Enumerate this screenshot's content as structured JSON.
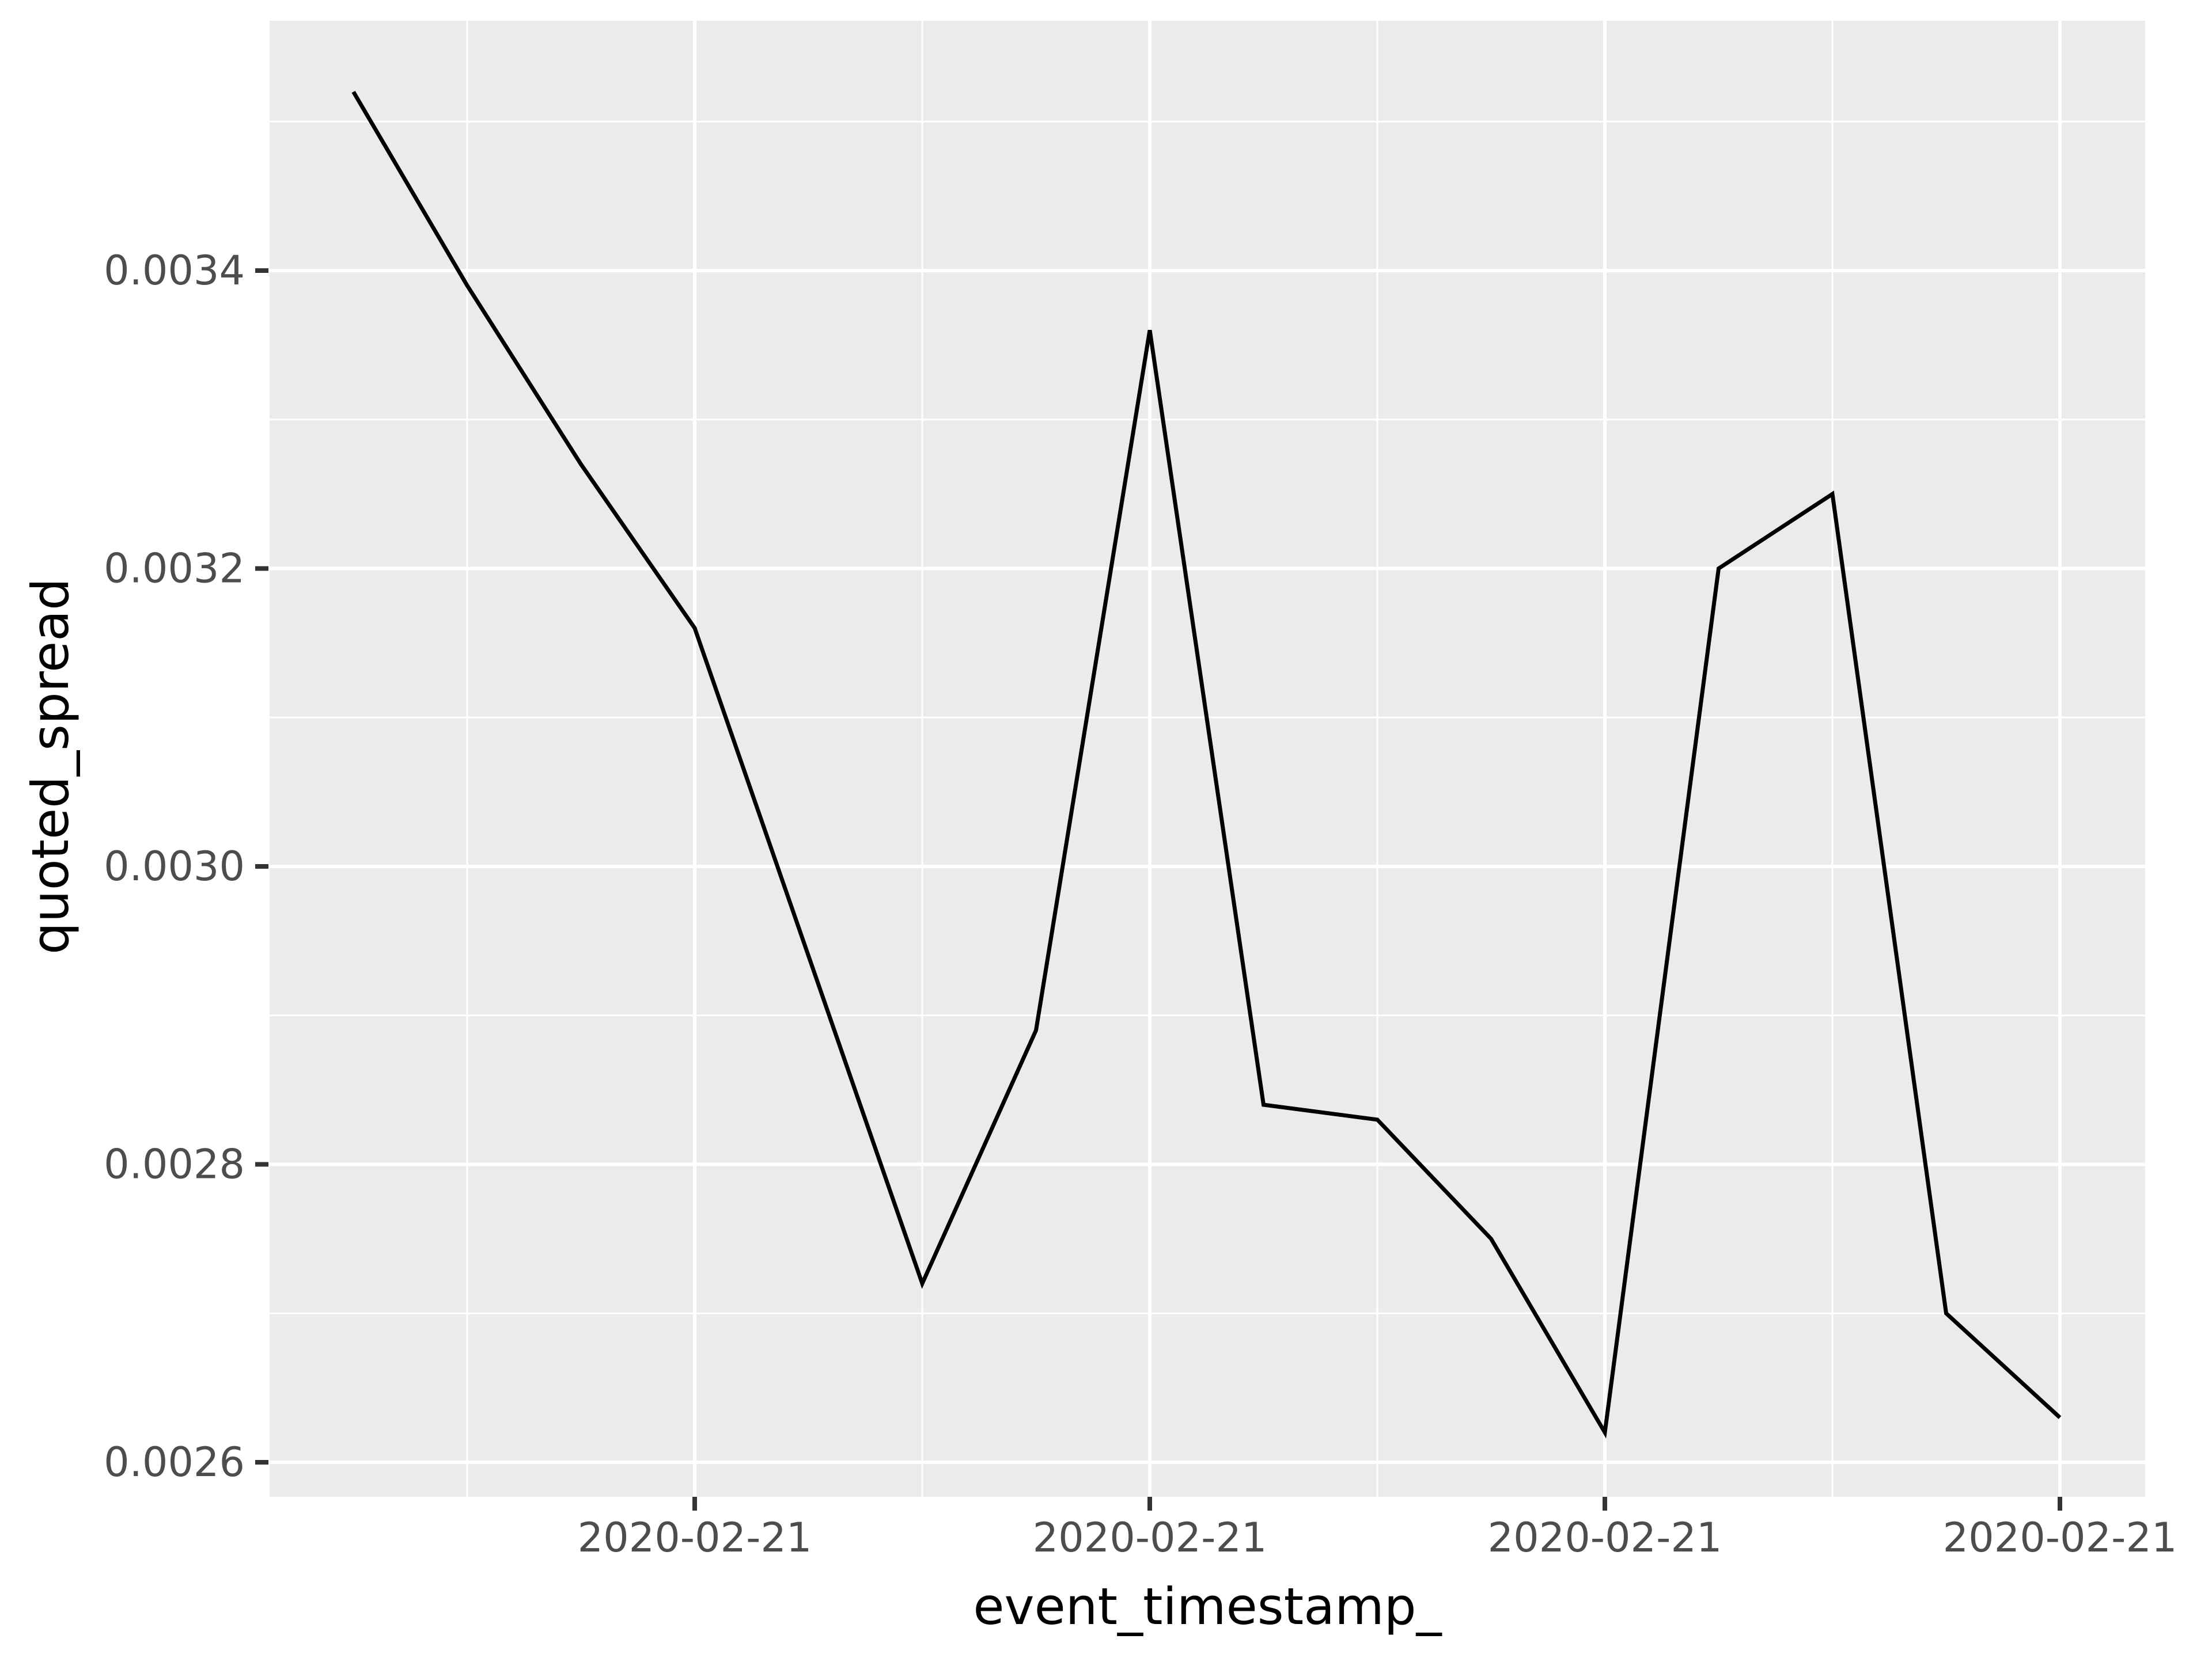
{
  "chart_data": {
    "type": "line",
    "title": "",
    "xlabel": "event_timestamp_",
    "ylabel": "quoted_spread",
    "x_tick_labels": [
      "2020-02-21",
      "2020-02-21",
      "2020-02-21",
      "2020-02-21"
    ],
    "y_tick_labels": [
      "0.0034",
      "0.0032",
      "0.0030",
      "0.0028",
      "0.0026"
    ],
    "y_major_gridlines": [
      0.0034,
      0.0032,
      0.003,
      0.0028,
      0.0026
    ],
    "y_minor_gridlines": [
      0.0035,
      0.0033,
      0.0031,
      0.0029,
      0.0027
    ],
    "x_index": [
      1,
      2,
      3,
      4,
      5,
      6,
      7,
      8,
      9,
      10,
      11,
      12,
      13,
      14,
      15,
      16
    ],
    "series": [
      {
        "name": "quoted_spread",
        "values": [
          0.00352,
          0.00339,
          0.00327,
          0.00316,
          0.00294,
          0.00272,
          0.00289,
          0.00336,
          0.00284,
          0.00283,
          0.00275,
          0.00262,
          0.0032,
          0.00325,
          0.0027,
          0.00263
        ]
      }
    ],
    "x_tick_at_point_index": [
      4,
      8,
      12,
      16
    ],
    "ylim": [
      0.00258,
      0.00357
    ],
    "grid": true,
    "legend_position": "none",
    "panel_style": "ggplot2-grey"
  },
  "colors": {
    "figure_bg": "#FFFFFF",
    "panel_bg": "#EBEBEB",
    "gridline": "#FFFFFF",
    "series_line": "#000000",
    "tick_mark": "#333333",
    "tick_label": "#4D4D4D",
    "axis_title": "#000000"
  }
}
